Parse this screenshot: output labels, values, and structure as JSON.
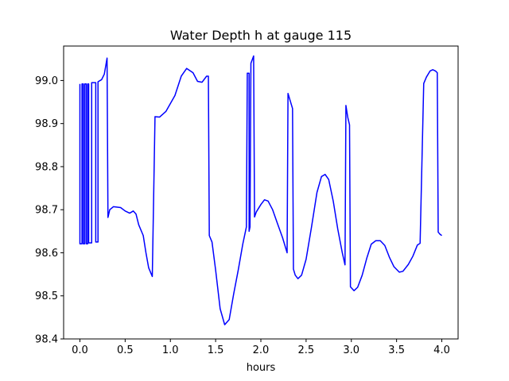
{
  "chart_data": {
    "type": "line",
    "title": "Water Depth h at gauge 115",
    "xlabel": "hours",
    "ylabel": "",
    "xlim": [
      -0.18,
      4.18
    ],
    "ylim": [
      98.4,
      99.08
    ],
    "xticks": [
      0.0,
      0.5,
      1.0,
      1.5,
      2.0,
      2.5,
      3.0,
      3.5,
      4.0
    ],
    "xtick_labels": [
      "0.0",
      "0.5",
      "1.0",
      "1.5",
      "2.0",
      "2.5",
      "3.0",
      "3.5",
      "4.0"
    ],
    "yticks": [
      98.4,
      98.5,
      98.6,
      98.7,
      98.8,
      98.9,
      99.0
    ],
    "ytick_labels": [
      "98.4",
      "98.5",
      "98.6",
      "98.7",
      "98.8",
      "98.9",
      "99.0"
    ],
    "grid": false,
    "series": [
      {
        "color": "#0000ff",
        "points": [
          [
            0.0,
            98.992
          ],
          [
            0.0,
            98.621
          ],
          [
            0.023,
            98.621
          ],
          [
            0.023,
            98.992
          ],
          [
            0.037,
            98.992
          ],
          [
            0.037,
            98.621
          ],
          [
            0.053,
            98.621
          ],
          [
            0.053,
            98.992
          ],
          [
            0.07,
            98.992
          ],
          [
            0.07,
            98.621
          ],
          [
            0.086,
            98.621
          ],
          [
            0.086,
            98.992
          ],
          [
            0.097,
            98.992
          ],
          [
            0.097,
            98.623
          ],
          [
            0.13,
            98.623
          ],
          [
            0.13,
            98.995
          ],
          [
            0.175,
            98.995
          ],
          [
            0.175,
            98.625
          ],
          [
            0.2,
            98.625
          ],
          [
            0.2,
            98.997
          ],
          [
            0.24,
            99.002
          ],
          [
            0.27,
            99.015
          ],
          [
            0.3,
            99.052
          ],
          [
            0.31,
            98.682
          ],
          [
            0.33,
            98.7
          ],
          [
            0.37,
            98.707
          ],
          [
            0.45,
            98.705
          ],
          [
            0.5,
            98.697
          ],
          [
            0.55,
            98.692
          ],
          [
            0.59,
            98.697
          ],
          [
            0.62,
            98.69
          ],
          [
            0.65,
            98.665
          ],
          [
            0.7,
            98.64
          ],
          [
            0.73,
            98.6
          ],
          [
            0.76,
            98.565
          ],
          [
            0.8,
            98.545
          ],
          [
            0.83,
            98.916
          ],
          [
            0.88,
            98.915
          ],
          [
            0.95,
            98.928
          ],
          [
            1.05,
            98.965
          ],
          [
            1.12,
            99.01
          ],
          [
            1.18,
            99.028
          ],
          [
            1.25,
            99.018
          ],
          [
            1.3,
            98.998
          ],
          [
            1.35,
            98.996
          ],
          [
            1.4,
            99.01
          ],
          [
            1.42,
            99.01
          ],
          [
            1.43,
            98.64
          ],
          [
            1.46,
            98.625
          ],
          [
            1.5,
            98.56
          ],
          [
            1.55,
            98.47
          ],
          [
            1.6,
            98.433
          ],
          [
            1.65,
            98.445
          ],
          [
            1.7,
            98.505
          ],
          [
            1.75,
            98.56
          ],
          [
            1.8,
            98.62
          ],
          [
            1.84,
            98.66
          ],
          [
            1.85,
            99.017
          ],
          [
            1.87,
            99.017
          ],
          [
            1.87,
            98.65
          ],
          [
            1.88,
            98.66
          ],
          [
            1.89,
            99.04
          ],
          [
            1.92,
            99.057
          ],
          [
            1.93,
            98.683
          ],
          [
            1.95,
            98.695
          ],
          [
            2.0,
            98.712
          ],
          [
            2.04,
            98.723
          ],
          [
            2.08,
            98.72
          ],
          [
            2.13,
            98.7
          ],
          [
            2.18,
            98.67
          ],
          [
            2.24,
            98.635
          ],
          [
            2.29,
            98.6
          ],
          [
            2.3,
            98.97
          ],
          [
            2.35,
            98.935
          ],
          [
            2.36,
            98.562
          ],
          [
            2.38,
            98.548
          ],
          [
            2.41,
            98.54
          ],
          [
            2.45,
            98.548
          ],
          [
            2.5,
            98.585
          ],
          [
            2.56,
            98.66
          ],
          [
            2.62,
            98.74
          ],
          [
            2.67,
            98.777
          ],
          [
            2.71,
            98.782
          ],
          [
            2.75,
            98.77
          ],
          [
            2.8,
            98.72
          ],
          [
            2.85,
            98.655
          ],
          [
            2.9,
            98.6
          ],
          [
            2.93,
            98.572
          ],
          [
            2.94,
            98.942
          ],
          [
            2.96,
            98.915
          ],
          [
            2.98,
            98.897
          ],
          [
            2.99,
            98.521
          ],
          [
            3.03,
            98.512
          ],
          [
            3.07,
            98.52
          ],
          [
            3.12,
            98.548
          ],
          [
            3.17,
            98.587
          ],
          [
            3.22,
            98.62
          ],
          [
            3.27,
            98.628
          ],
          [
            3.32,
            98.628
          ],
          [
            3.37,
            98.617
          ],
          [
            3.42,
            98.59
          ],
          [
            3.47,
            98.568
          ],
          [
            3.53,
            98.555
          ],
          [
            3.57,
            98.557
          ],
          [
            3.63,
            98.573
          ],
          [
            3.68,
            98.592
          ],
          [
            3.73,
            98.618
          ],
          [
            3.76,
            98.622
          ],
          [
            3.8,
            98.993
          ],
          [
            3.83,
            99.008
          ],
          [
            3.87,
            99.022
          ],
          [
            3.9,
            99.025
          ],
          [
            3.93,
            99.022
          ],
          [
            3.95,
            99.018
          ],
          [
            3.96,
            98.648
          ],
          [
            3.98,
            98.643
          ],
          [
            4.0,
            98.64
          ]
        ]
      }
    ]
  }
}
